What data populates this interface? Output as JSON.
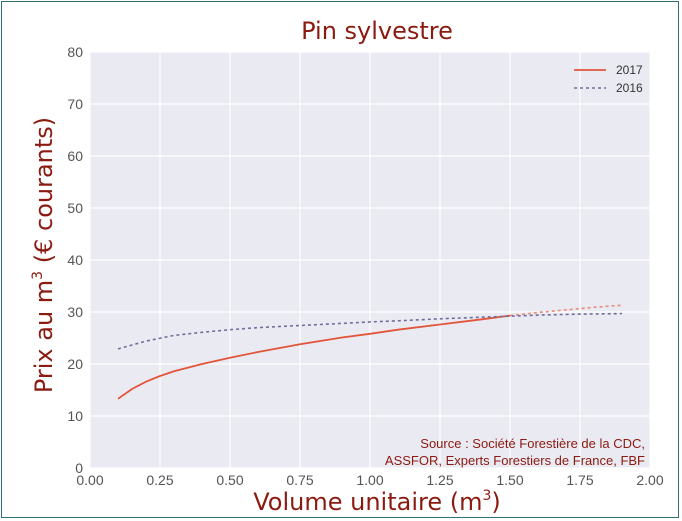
{
  "chart_data": {
    "type": "line",
    "title": "Pin sylvestre",
    "xlabel": "Volume unitaire (m",
    "xlabel_sup": "3",
    "xlabel_end": ")",
    "ylabel": "Prix au m",
    "ylabel_sup": "3",
    "ylabel_end": " (€ courants)",
    "xlim": [
      0,
      2
    ],
    "ylim": [
      0,
      80
    ],
    "xticks": [
      "0.00",
      "0.25",
      "0.50",
      "0.75",
      "1.00",
      "1.25",
      "1.50",
      "1.75",
      "2.00"
    ],
    "yticks": [
      "0",
      "10",
      "20",
      "30",
      "40",
      "50",
      "60",
      "70",
      "80"
    ],
    "grid": true,
    "legend_position": "top-right",
    "source_lines": [
      "Source : Société Forestière de la CDC,",
      "ASSFOR, Experts Forestiers de France, FBF"
    ],
    "series": [
      {
        "name": "2017",
        "color": "#e2553a",
        "style": "solid",
        "x": [
          0.1,
          0.15,
          0.2,
          0.25,
          0.3,
          0.4,
          0.5,
          0.6,
          0.75,
          0.9,
          1.0,
          1.1,
          1.25,
          1.4,
          1.5
        ],
        "y": [
          13.3,
          15.2,
          16.6,
          17.7,
          18.6,
          20.0,
          21.2,
          22.3,
          23.8,
          25.1,
          25.8,
          26.6,
          27.6,
          28.6,
          29.3
        ]
      },
      {
        "name": "2017",
        "color": "#e88a78",
        "style": "dashed-extension",
        "x": [
          1.5,
          1.6,
          1.7,
          1.8,
          1.9
        ],
        "y": [
          29.3,
          29.9,
          30.4,
          30.9,
          31.3
        ]
      },
      {
        "name": "2016",
        "color": "#6f6f9e",
        "style": "dashed",
        "x": [
          0.1,
          0.2,
          0.3,
          0.4,
          0.5,
          0.6,
          0.75,
          0.9,
          1.0,
          1.1,
          1.25,
          1.4,
          1.5,
          1.6,
          1.75,
          1.9
        ],
        "y": [
          22.9,
          24.4,
          25.5,
          26.1,
          26.6,
          27.0,
          27.4,
          27.8,
          28.1,
          28.3,
          28.7,
          29.0,
          29.2,
          29.4,
          29.6,
          29.7
        ]
      }
    ],
    "legend": [
      {
        "label": "2017",
        "color": "#e2553a",
        "style": "solid"
      },
      {
        "label": "2016",
        "color": "#6f6f9e",
        "style": "dashed"
      }
    ]
  }
}
